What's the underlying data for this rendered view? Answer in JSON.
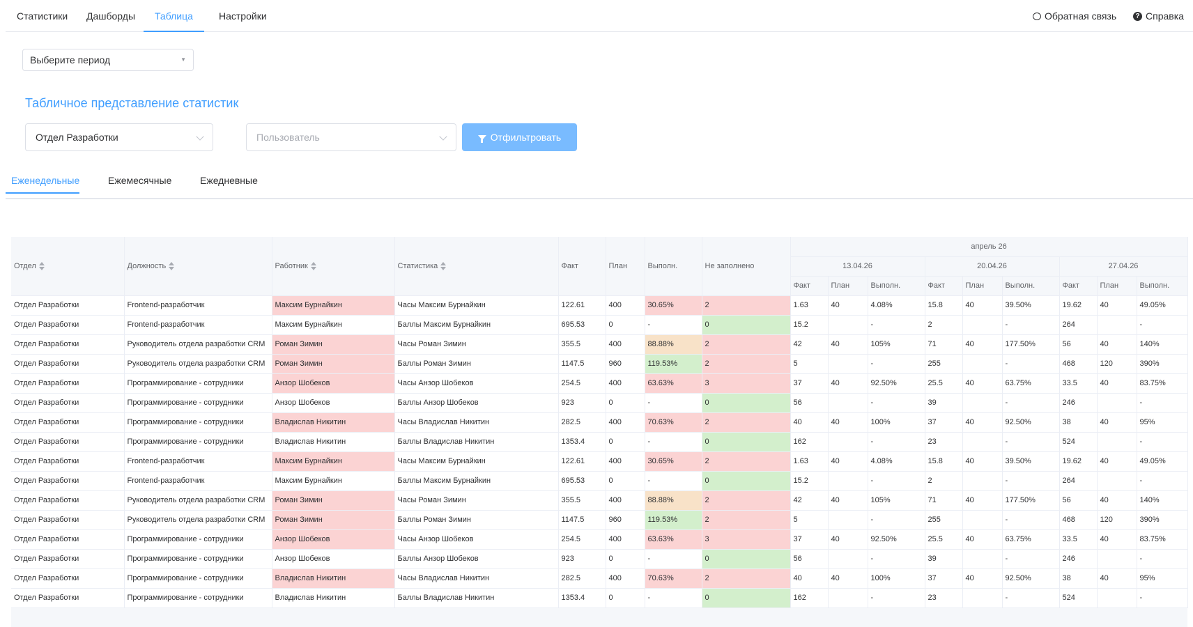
{
  "nav": {
    "items": [
      "Статистики",
      "Дашборды",
      "Таблица",
      "Настройки"
    ],
    "active_index": 2,
    "feedback": "Обратная связь",
    "help": "Справка"
  },
  "period": {
    "placeholder": "Выберите период"
  },
  "section_title": "Табличное представление статистик",
  "filters": {
    "department": "Отдел Разработки",
    "user_placeholder": "Пользователь",
    "button": "Отфильтровать"
  },
  "tabs": [
    "Еженедельные",
    "Ежемесячные",
    "Ежедневные"
  ],
  "table": {
    "headers": {
      "dept": "Отдел",
      "position": "Должность",
      "worker": "Работник",
      "stat": "Статистика",
      "fact": "Факт",
      "plan": "План",
      "perf": "Выполн.",
      "unfilled": "Не заполнено"
    },
    "month": "апрель 26",
    "weeks": [
      "13.04.26",
      "20.04.26",
      "27.04.26"
    ],
    "sub": [
      "Факт",
      "План",
      "Выполн."
    ],
    "rows": [
      {
        "dept": "Отдел Разработки",
        "pos": "Frontend-разработчик",
        "worker": "Максим Бурнайкин",
        "stat": "Часы Максим Бурнайкин",
        "fact": "122.61",
        "plan": "400",
        "perf": "30.65%",
        "unf": "2",
        "wc": "red",
        "pc": "red",
        "uc": "red",
        "w": [
          [
            "1.63",
            "40",
            "4.08%"
          ],
          [
            "15.8",
            "40",
            "39.50%"
          ],
          [
            "19.62",
            "40",
            "49.05%"
          ]
        ]
      },
      {
        "dept": "Отдел Разработки",
        "pos": "Frontend-разработчик",
        "worker": "Максим Бурнайкин",
        "stat": "Баллы Максим Бурнайкин",
        "fact": "695.53",
        "plan": "0",
        "perf": "-",
        "unf": "0",
        "wc": "",
        "pc": "",
        "uc": "green",
        "w": [
          [
            "15.2",
            "",
            "-"
          ],
          [
            "2",
            "",
            "-"
          ],
          [
            "264",
            "",
            "-"
          ]
        ]
      },
      {
        "dept": "Отдел Разработки",
        "pos": "Руководитель отдела разработки CRM",
        "worker": "Роман Зимин",
        "stat": "Часы Роман Зимин",
        "fact": "355.5",
        "plan": "400",
        "perf": "88.88%",
        "unf": "2",
        "wc": "red",
        "pc": "orange",
        "uc": "red",
        "w": [
          [
            "42",
            "40",
            "105%"
          ],
          [
            "71",
            "40",
            "177.50%"
          ],
          [
            "56",
            "40",
            "140%"
          ]
        ]
      },
      {
        "dept": "Отдел Разработки",
        "pos": "Руководитель отдела разработки CRM",
        "worker": "Роман Зимин",
        "stat": "Баллы Роман Зимин",
        "fact": "1147.5",
        "plan": "960",
        "perf": "119.53%",
        "unf": "2",
        "wc": "red",
        "pc": "green",
        "uc": "red",
        "w": [
          [
            "5",
            "",
            "-"
          ],
          [
            "255",
            "",
            "-"
          ],
          [
            "468",
            "120",
            "390%"
          ]
        ]
      },
      {
        "dept": "Отдел Разработки",
        "pos": "Программирование - сотрудники",
        "worker": "Анзор Шобеков",
        "stat": "Часы Анзор Шобеков",
        "fact": "254.5",
        "plan": "400",
        "perf": "63.63%",
        "unf": "3",
        "wc": "red",
        "pc": "red",
        "uc": "red",
        "w": [
          [
            "37",
            "40",
            "92.50%"
          ],
          [
            "25.5",
            "40",
            "63.75%"
          ],
          [
            "33.5",
            "40",
            "83.75%"
          ]
        ]
      },
      {
        "dept": "Отдел Разработки",
        "pos": "Программирование - сотрудники",
        "worker": "Анзор Шобеков",
        "stat": "Баллы Анзор Шобеков",
        "fact": "923",
        "plan": "0",
        "perf": "-",
        "unf": "0",
        "wc": "",
        "pc": "",
        "uc": "green",
        "w": [
          [
            "56",
            "",
            "-"
          ],
          [
            "39",
            "",
            "-"
          ],
          [
            "246",
            "",
            "-"
          ]
        ]
      },
      {
        "dept": "Отдел Разработки",
        "pos": "Программирование - сотрудники",
        "worker": "Владислав Никитин",
        "stat": "Часы Владислав Никитин",
        "fact": "282.5",
        "plan": "400",
        "perf": "70.63%",
        "unf": "2",
        "wc": "red",
        "pc": "red",
        "uc": "red",
        "w": [
          [
            "40",
            "40",
            "100%"
          ],
          [
            "37",
            "40",
            "92.50%"
          ],
          [
            "38",
            "40",
            "95%"
          ]
        ]
      },
      {
        "dept": "Отдел Разработки",
        "pos": "Программирование - сотрудники",
        "worker": "Владислав Никитин",
        "stat": "Баллы Владислав Никитин",
        "fact": "1353.4",
        "plan": "0",
        "perf": "-",
        "unf": "0",
        "wc": "",
        "pc": "",
        "uc": "green",
        "w": [
          [
            "162",
            "",
            "-"
          ],
          [
            "23",
            "",
            "-"
          ],
          [
            "524",
            "",
            "-"
          ]
        ]
      },
      {
        "dept": "Отдел Разработки",
        "pos": "Frontend-разработчик",
        "worker": "Максим Бурнайкин",
        "stat": "Часы Максим Бурнайкин",
        "fact": "122.61",
        "plan": "400",
        "perf": "30.65%",
        "unf": "2",
        "wc": "red",
        "pc": "red",
        "uc": "red",
        "w": [
          [
            "1.63",
            "40",
            "4.08%"
          ],
          [
            "15.8",
            "40",
            "39.50%"
          ],
          [
            "19.62",
            "40",
            "49.05%"
          ]
        ]
      },
      {
        "dept": "Отдел Разработки",
        "pos": "Frontend-разработчик",
        "worker": "Максим Бурнайкин",
        "stat": "Баллы Максим Бурнайкин",
        "fact": "695.53",
        "plan": "0",
        "perf": "-",
        "unf": "0",
        "wc": "",
        "pc": "",
        "uc": "green",
        "w": [
          [
            "15.2",
            "",
            "-"
          ],
          [
            "2",
            "",
            "-"
          ],
          [
            "264",
            "",
            "-"
          ]
        ]
      },
      {
        "dept": "Отдел Разработки",
        "pos": "Руководитель отдела разработки CRM",
        "worker": "Роман Зимин",
        "stat": "Часы Роман Зимин",
        "fact": "355.5",
        "plan": "400",
        "perf": "88.88%",
        "unf": "2",
        "wc": "red",
        "pc": "orange",
        "uc": "red",
        "w": [
          [
            "42",
            "40",
            "105%"
          ],
          [
            "71",
            "40",
            "177.50%"
          ],
          [
            "56",
            "40",
            "140%"
          ]
        ]
      },
      {
        "dept": "Отдел Разработки",
        "pos": "Руководитель отдела разработки CRM",
        "worker": "Роман Зимин",
        "stat": "Баллы Роман Зимин",
        "fact": "1147.5",
        "plan": "960",
        "perf": "119.53%",
        "unf": "2",
        "wc": "red",
        "pc": "green",
        "uc": "red",
        "w": [
          [
            "5",
            "",
            "-"
          ],
          [
            "255",
            "",
            "-"
          ],
          [
            "468",
            "120",
            "390%"
          ]
        ]
      },
      {
        "dept": "Отдел Разработки",
        "pos": "Программирование - сотрудники",
        "worker": "Анзор Шобеков",
        "stat": "Часы Анзор Шобеков",
        "fact": "254.5",
        "plan": "400",
        "perf": "63.63%",
        "unf": "3",
        "wc": "red",
        "pc": "red",
        "uc": "red",
        "w": [
          [
            "37",
            "40",
            "92.50%"
          ],
          [
            "25.5",
            "40",
            "63.75%"
          ],
          [
            "33.5",
            "40",
            "83.75%"
          ]
        ]
      },
      {
        "dept": "Отдел Разработки",
        "pos": "Программирование - сотрудники",
        "worker": "Анзор Шобеков",
        "stat": "Баллы Анзор Шобеков",
        "fact": "923",
        "plan": "0",
        "perf": "-",
        "unf": "0",
        "wc": "",
        "pc": "",
        "uc": "green",
        "w": [
          [
            "56",
            "",
            "-"
          ],
          [
            "39",
            "",
            "-"
          ],
          [
            "246",
            "",
            "-"
          ]
        ]
      },
      {
        "dept": "Отдел Разработки",
        "pos": "Программирование - сотрудники",
        "worker": "Владислав Никитин",
        "stat": "Часы Владислав Никитин",
        "fact": "282.5",
        "plan": "400",
        "perf": "70.63%",
        "unf": "2",
        "wc": "red",
        "pc": "red",
        "uc": "red",
        "w": [
          [
            "40",
            "40",
            "100%"
          ],
          [
            "37",
            "40",
            "92.50%"
          ],
          [
            "38",
            "40",
            "95%"
          ]
        ]
      },
      {
        "dept": "Отдел Разработки",
        "pos": "Программирование - сотрудники",
        "worker": "Владислав Никитин",
        "stat": "Баллы Владислав Никитин",
        "fact": "1353.4",
        "plan": "0",
        "perf": "-",
        "unf": "0",
        "wc": "",
        "pc": "",
        "uc": "green",
        "w": [
          [
            "162",
            "",
            "-"
          ],
          [
            "23",
            "",
            "-"
          ],
          [
            "524",
            "",
            "-"
          ]
        ]
      }
    ]
  },
  "colors": {
    "accent": "#409eff",
    "button": "#79bbff",
    "red": "#fbd3d3",
    "green": "#d3efcc",
    "orange": "#f8e2c8"
  }
}
